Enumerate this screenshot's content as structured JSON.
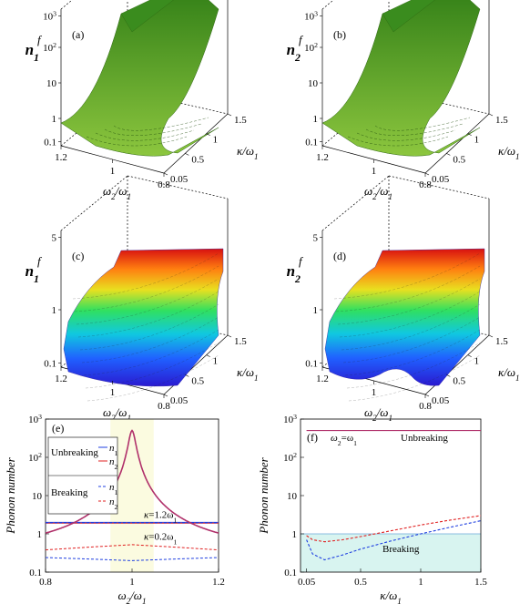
{
  "chart_data": [
    {
      "panel": "(a)",
      "type": "surface3d",
      "zlabel_base": "n",
      "zlabel_sup": "f",
      "zlabel_sub": "1",
      "xlabel_base": "ω",
      "xlabel_num_sub": "2",
      "xlabel_den_sub": "1",
      "ylabel_base": "κ",
      "ylabel_sub": "1",
      "z_ticks": [
        "10",
        "10",
        "10",
        "1",
        "0.1"
      ],
      "z_tick_sups": [
        "3",
        "2",
        "",
        "",
        ""
      ],
      "x_ticks": [
        "1.2",
        "1",
        "0.8"
      ],
      "y_ticks": [
        "0.05",
        "0.5",
        "1",
        "1.5"
      ],
      "surface_color": "#5aa02c"
    },
    {
      "panel": "(b)",
      "type": "surface3d",
      "zlabel_base": "n",
      "zlabel_sup": "f",
      "zlabel_sub": "2",
      "xlabel_base": "ω",
      "xlabel_num_sub": "2",
      "xlabel_den_sub": "1",
      "ylabel_base": "κ",
      "ylabel_sub": "1",
      "z_ticks": [
        "10",
        "10",
        "10",
        "1",
        "0.1"
      ],
      "z_tick_sups": [
        "3",
        "2",
        "",
        "",
        ""
      ],
      "x_ticks": [
        "1.2",
        "1",
        "0.8"
      ],
      "y_ticks": [
        "0.05",
        "0.5",
        "1",
        "1.5"
      ],
      "surface_color": "#5aa02c"
    },
    {
      "panel": "(c)",
      "type": "surface3d",
      "zlabel_base": "n",
      "zlabel_sup": "f",
      "zlabel_sub": "1",
      "xlabel_base": "ω",
      "xlabel_num_sub": "2",
      "xlabel_den_sub": "1",
      "ylabel_base": "κ",
      "ylabel_sub": "1",
      "z_ticks": [
        "5",
        "1",
        "0.1"
      ],
      "x_ticks": [
        "1.2",
        "1",
        "0.8"
      ],
      "y_ticks": [
        "0.05",
        "0.5",
        "1",
        "1.5"
      ],
      "colormap": "jet"
    },
    {
      "panel": "(d)",
      "type": "surface3d",
      "zlabel_base": "n",
      "zlabel_sup": "f",
      "zlabel_sub": "2",
      "xlabel_base": "ω",
      "xlabel_num_sub": "2",
      "xlabel_den_sub": "1",
      "ylabel_base": "κ",
      "ylabel_sub": "1",
      "z_ticks": [
        "5",
        "1",
        "0.1"
      ],
      "x_ticks": [
        "1.2",
        "1",
        "0.8"
      ],
      "y_ticks": [
        "0.05",
        "0.5",
        "1",
        "1.5"
      ],
      "colormap": "jet"
    },
    {
      "panel": "(e)",
      "type": "line",
      "yscale": "log",
      "ylabel": "Phonon number",
      "xlabel_base": "ω",
      "xlabel_num_sub": "2",
      "xlabel_den_sub": "1",
      "xlim": [
        0.8,
        1.2
      ],
      "ylim": [
        0.1,
        1000
      ],
      "x_ticks": [
        "0.8",
        "1",
        "1.2"
      ],
      "y_ticks": [
        "10",
        "10",
        "10",
        "1",
        "0.1"
      ],
      "y_tick_sups": [
        "3",
        "2",
        "",
        "",
        ""
      ],
      "shaded_region": {
        "x": [
          0.95,
          1.05
        ],
        "color": "#fbfbe0"
      },
      "legend": {
        "groups": [
          "Unbreaking",
          "Breaking"
        ],
        "entry_base": "n",
        "entry_sup": "f",
        "entry_subs": [
          "1",
          "2"
        ]
      },
      "annotations": [
        {
          "base": "κ",
          "text": "=1.2ω",
          "sub": "1"
        },
        {
          "base": "κ",
          "text": "=0.2ω",
          "sub": "1"
        }
      ],
      "colors": {
        "n1": "#1f3fe0",
        "n2": "#e02020",
        "peak": "#b0306a"
      },
      "series": [
        {
          "group": "Unbreaking",
          "kappa": 1.2,
          "n1": 2.0,
          "n2": 1.9
        },
        {
          "group": "Breaking",
          "kappa": 1.2,
          "n1": 1.95,
          "n2": 1.85
        },
        {
          "group": "Unbreaking",
          "kappa": 0.2,
          "resonance": true
        },
        {
          "group": "Breaking",
          "kappa": 0.2,
          "n1_x": [
            0.8,
            0.9,
            1.0,
            1.1,
            1.2
          ],
          "n1_y": [
            0.24,
            0.22,
            0.2,
            0.22,
            0.24
          ],
          "n2_x": [
            0.8,
            0.9,
            1.0,
            1.1,
            1.2
          ],
          "n2_y": [
            0.38,
            0.45,
            0.52,
            0.45,
            0.38
          ]
        }
      ]
    },
    {
      "panel": "(f)",
      "type": "line",
      "yscale": "log",
      "ylabel": "Phonon number",
      "xlabel_base": "κ",
      "xlabel_sub": "1",
      "xlim": [
        0.0,
        1.5
      ],
      "ylim": [
        0.1,
        1000
      ],
      "x_ticks": [
        "0.05",
        "0.5",
        "1",
        "1.5"
      ],
      "y_ticks": [
        "10",
        "10",
        "10",
        "1",
        "0.1"
      ],
      "y_tick_sups": [
        "3",
        "2",
        "",
        "",
        ""
      ],
      "label_condition_pre": "ω",
      "label_condition_sub1": "2",
      "label_condition_mid": "=ω",
      "label_condition_sub2": "1",
      "label_unbreaking": "Unbreaking",
      "label_breaking": "Breaking",
      "breaking_region": {
        "y": [
          0.1,
          1.0
        ],
        "color": "#d8f4f0"
      },
      "series": [
        {
          "name": "n1_unbreaking",
          "x": [
            0.05,
            1.5
          ],
          "y": [
            500,
            500
          ],
          "color": "#b0306a"
        },
        {
          "name": "n1_breaking",
          "x": [
            0.05,
            0.1,
            0.2,
            0.35,
            0.5,
            0.75,
            1.0,
            1.25,
            1.5
          ],
          "y": [
            0.7,
            0.3,
            0.21,
            0.28,
            0.4,
            0.65,
            1.0,
            1.5,
            2.2
          ],
          "color": "#1f3fe0"
        },
        {
          "name": "n2_breaking",
          "x": [
            0.05,
            0.1,
            0.2,
            0.35,
            0.5,
            0.75,
            1.0,
            1.25,
            1.5
          ],
          "y": [
            0.9,
            0.7,
            0.62,
            0.7,
            0.85,
            1.2,
            1.7,
            2.3,
            3.0
          ],
          "color": "#e02020"
        }
      ]
    }
  ]
}
